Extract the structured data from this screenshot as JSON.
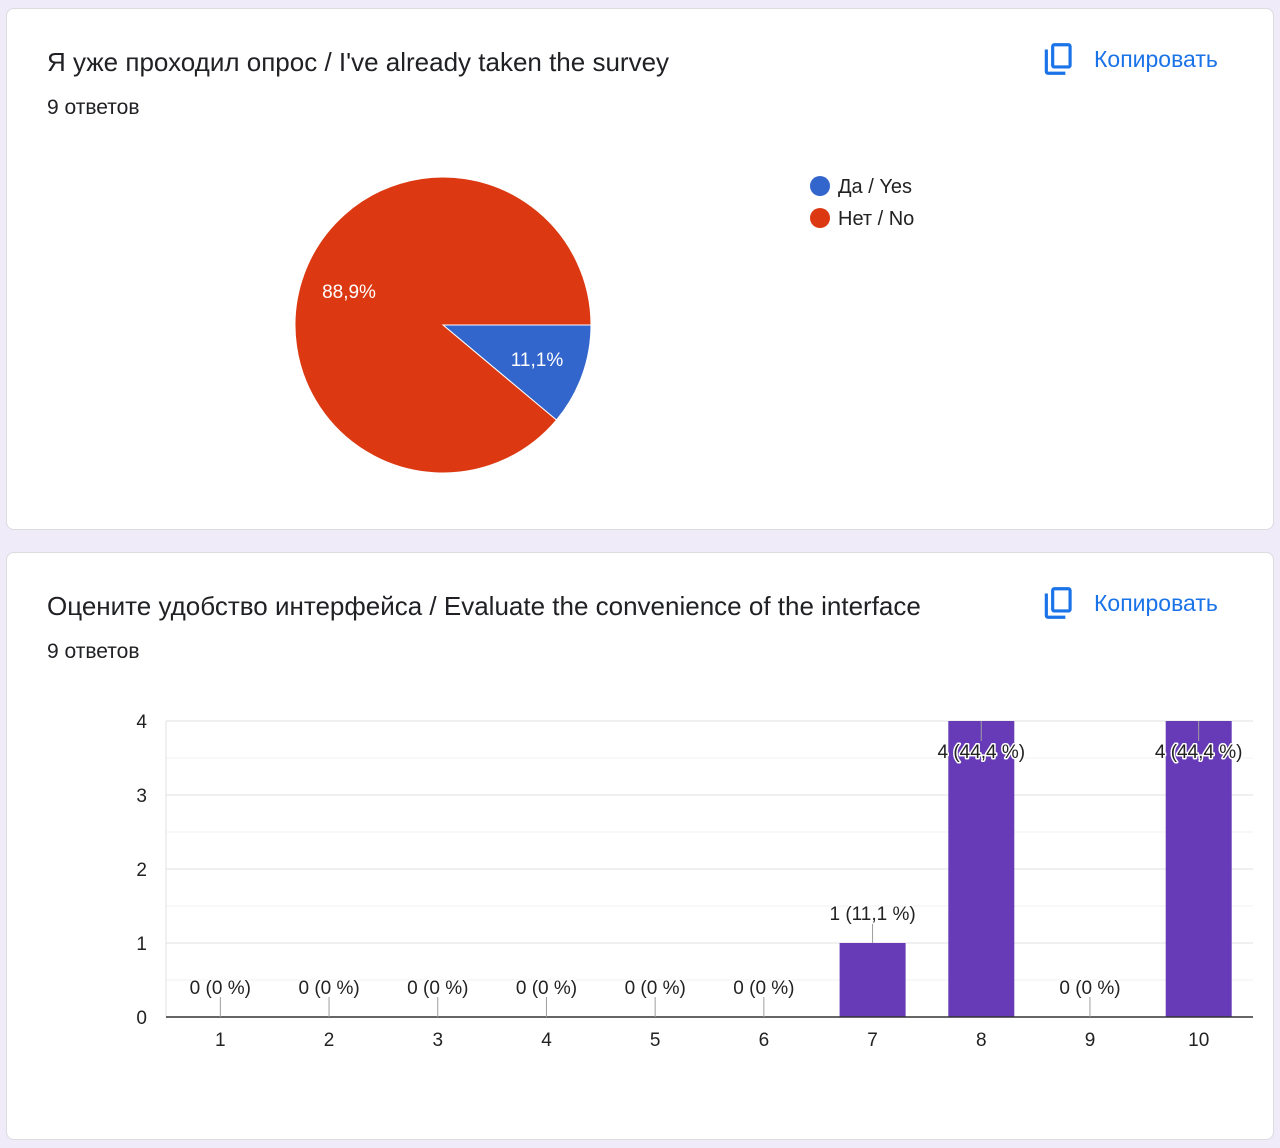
{
  "theme": {
    "background": "#f0ebf8",
    "card_border": "#dadce0",
    "accent": "#1a73e8"
  },
  "cards": [
    {
      "responses": "9 ответов",
      "copy_label": "Копировать",
      "copy_icon": "copy-icon"
    },
    {
      "responses": "9 ответов",
      "copy_label": "Копировать",
      "copy_icon": "copy-icon"
    }
  ],
  "chart_data": [
    {
      "type": "pie",
      "title": "Я уже проходил опрос / I've already taken the survey",
      "categories": [
        "Да / Yes",
        "Нет / No"
      ],
      "values": [
        11.1,
        88.9
      ],
      "slice_labels": [
        "11,1%",
        "88,9%"
      ],
      "colors": [
        "#3366cc",
        "#dc3912"
      ],
      "legend": "right"
    },
    {
      "type": "bar",
      "title": "Оцените удобство интерфейса / Evaluate the convenience of the interface",
      "categories": [
        "1",
        "2",
        "3",
        "4",
        "5",
        "6",
        "7",
        "8",
        "9",
        "10"
      ],
      "values": [
        0,
        0,
        0,
        0,
        0,
        0,
        1,
        4,
        0,
        4
      ],
      "data_labels": [
        "0 (0 %)",
        "0 (0 %)",
        "0 (0 %)",
        "0 (0 %)",
        "0 (0 %)",
        "0 (0 %)",
        "1 (11,1 %)",
        "4 (44,4 %)",
        "0 (0 %)",
        "4 (44,4 %)"
      ],
      "ylim": [
        0,
        4
      ],
      "yticks": [
        0,
        1,
        2,
        3,
        4
      ],
      "color": "#673ab7",
      "grid": true
    }
  ]
}
